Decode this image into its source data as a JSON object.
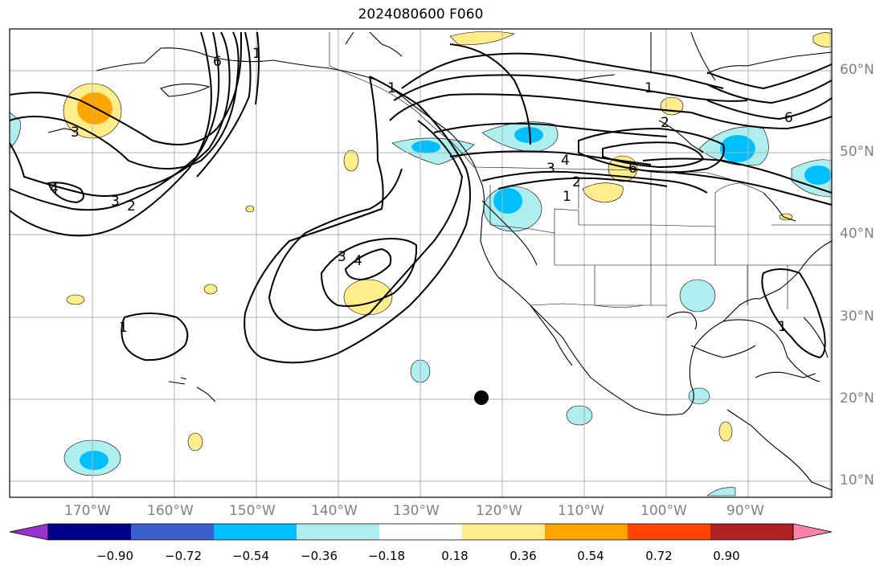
{
  "title": "2024080600 F060",
  "lat_labels": [
    "60°N",
    "50°N",
    "40°N",
    "30°N",
    "20°N",
    "10°N"
  ],
  "lon_labels": [
    "170°W",
    "160°W",
    "150°W",
    "140°W",
    "130°W",
    "120°W",
    "110°W",
    "100°W",
    "90°W"
  ],
  "colorbar": {
    "colors": [
      "#9932cc",
      "#00008b",
      "#3a5fcd",
      "#00bfff",
      "#afeeee",
      "#ffffff",
      "#ffec8b",
      "#ffa500",
      "#ff4500",
      "#b22222",
      "#ff82ab"
    ],
    "ticks": [
      "−0.90",
      "−0.72",
      "−0.54",
      "−0.36",
      "−0.18",
      "0.18",
      "0.36",
      "0.54",
      "0.72",
      "0.90"
    ]
  },
  "contour_labels": [
    "1",
    "2",
    "3",
    "4",
    "6"
  ],
  "marker": {
    "name": "black dot",
    "lat": 20,
    "lon": -122.5
  }
}
